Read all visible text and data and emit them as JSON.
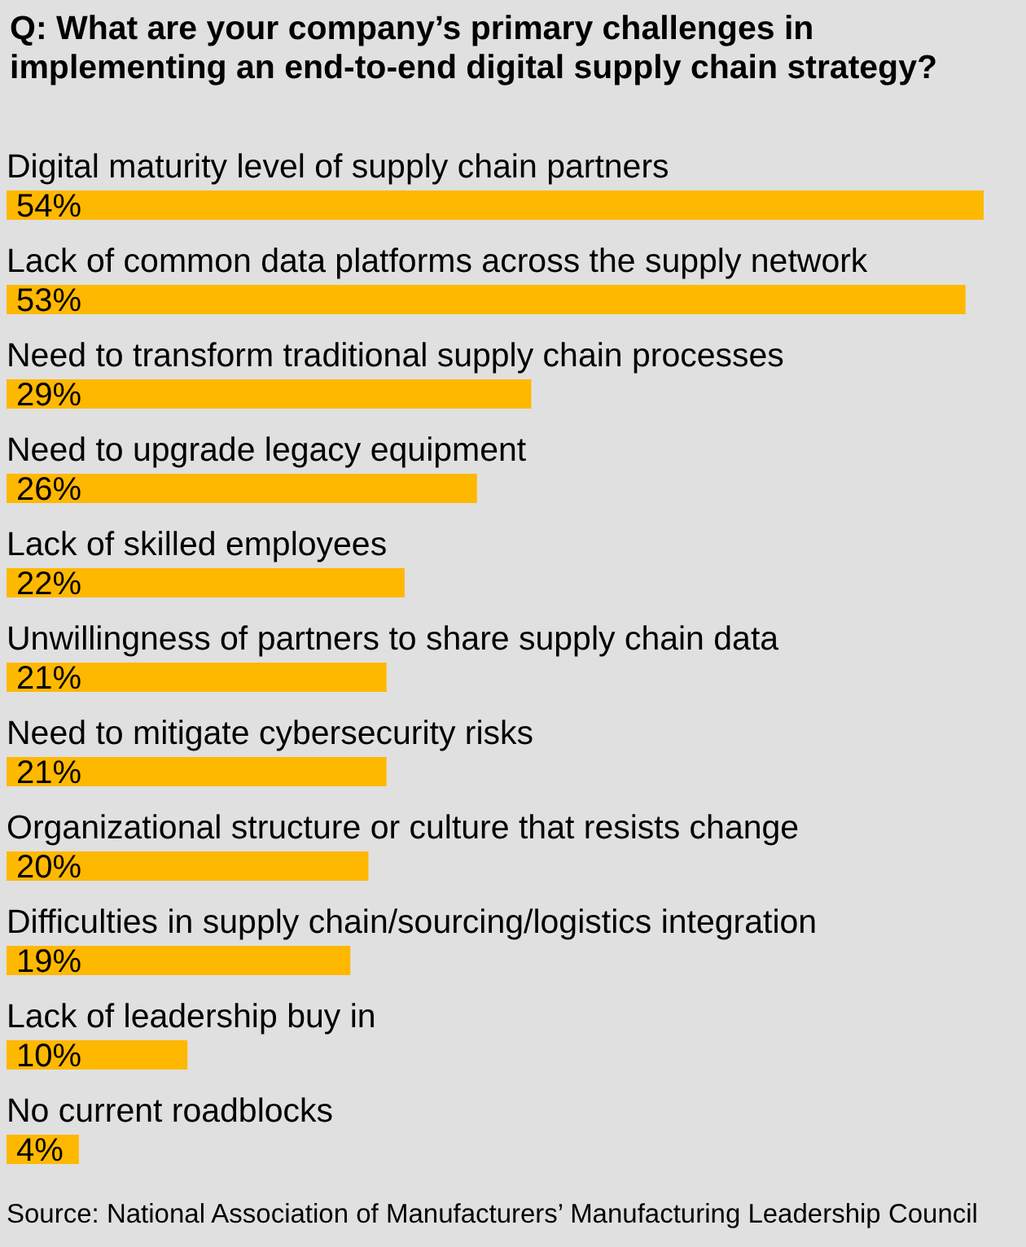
{
  "chart_data": {
    "type": "bar",
    "orientation": "horizontal",
    "title": "Q: What are your company’s primary challenges in implementing an end-to-end digital supply chain strategy?",
    "categories": [
      "Digital maturity level of supply chain partners",
      "Lack of common data platforms across the supply network",
      "Need to transform traditional supply chain processes",
      "Need to upgrade legacy equipment",
      "Lack of skilled employees",
      "Unwillingness of partners to share supply chain data",
      "Need to mitigate cybersecurity risks",
      "Organizational structure or culture that resists change",
      "Difficulties in supply chain/sourcing/logistics integration",
      "Lack of leadership buy in",
      "No current roadblocks"
    ],
    "values": [
      54,
      53,
      29,
      26,
      22,
      21,
      21,
      20,
      19,
      10,
      4
    ],
    "value_labels": [
      "54%",
      "53%",
      "29%",
      "26%",
      "22%",
      "21%",
      "21%",
      "20%",
      "19%",
      "10%",
      "4%"
    ],
    "color": "#ffb800",
    "annotations": [
      "Source: National Association of Manufacturers’ Manufacturing Leadership Council"
    ]
  }
}
